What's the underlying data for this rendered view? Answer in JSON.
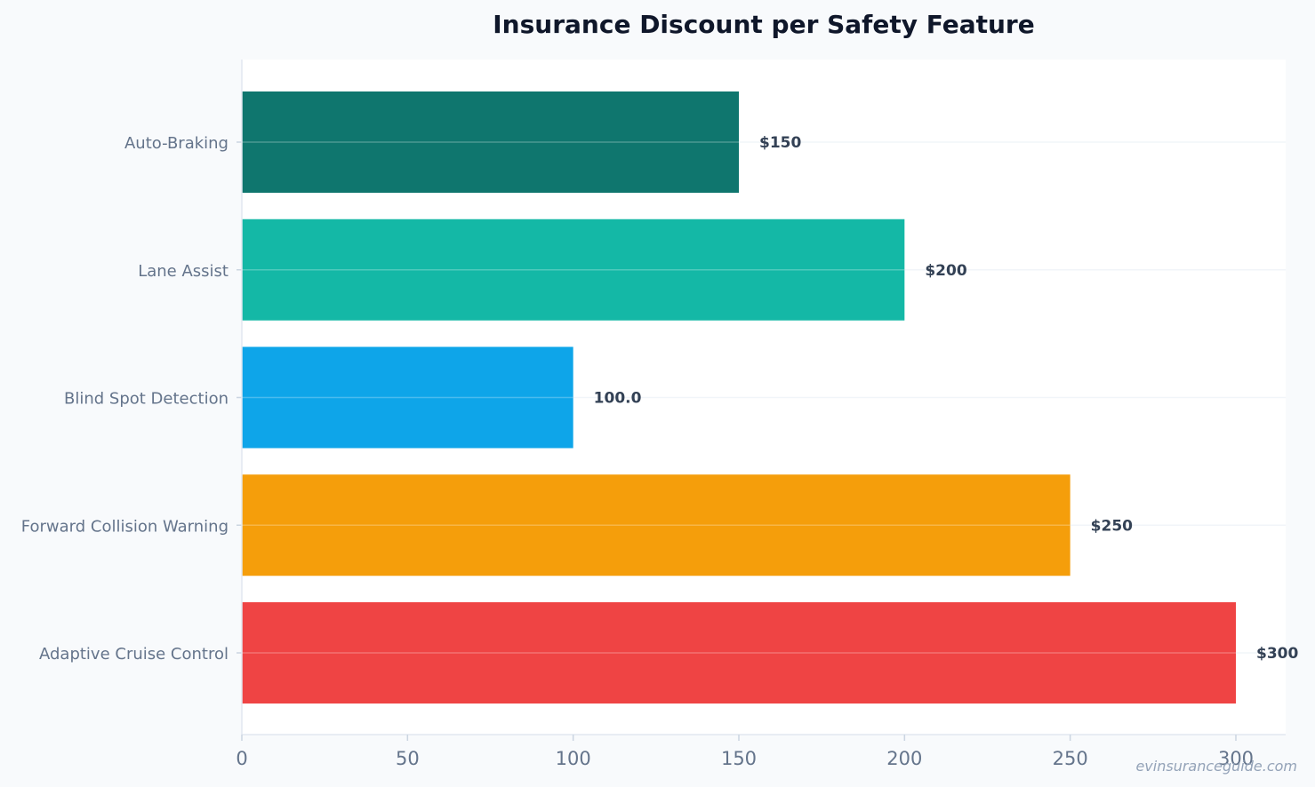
{
  "chart_data": {
    "type": "bar",
    "orientation": "horizontal",
    "title": "Insurance Discount per Safety Feature",
    "xlabel": "",
    "ylabel": "",
    "xlim": [
      0,
      315
    ],
    "xticks": [
      0,
      50,
      100,
      150,
      200,
      250,
      300
    ],
    "grid": true,
    "categories": [
      "Auto-Braking",
      "Lane Assist",
      "Blind Spot Detection",
      "Forward Collision Warning",
      "Adaptive Cruise Control"
    ],
    "values": [
      150,
      200,
      100,
      250,
      300
    ],
    "data_labels": [
      "$150",
      "$200",
      "100.0",
      "$250",
      "$300"
    ],
    "colors": [
      "#0f766e",
      "#14b8a6",
      "#0ea5e9",
      "#f59e0b",
      "#ef4444"
    ]
  },
  "watermark": "evinsuranceguide.com"
}
